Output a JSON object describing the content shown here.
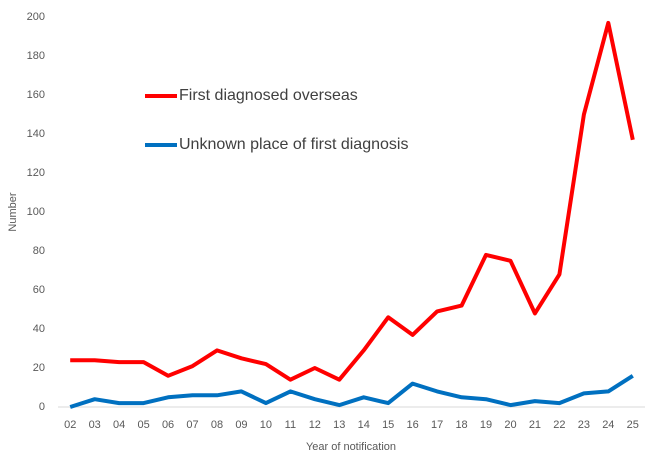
{
  "chart_data": {
    "type": "line",
    "x_label": "Year of notification",
    "y_label": "Number",
    "categories": [
      "02",
      "03",
      "04",
      "05",
      "06",
      "07",
      "08",
      "09",
      "10",
      "11",
      "12",
      "13",
      "14",
      "15",
      "16",
      "17",
      "18",
      "19",
      "20",
      "21",
      "22",
      "23",
      "24",
      "25"
    ],
    "series": [
      {
        "name": "First diagnosed overseas",
        "color": "#ff0000",
        "values": [
          24,
          24,
          23,
          23,
          16,
          21,
          29,
          25,
          22,
          14,
          20,
          14,
          29,
          46,
          37,
          49,
          52,
          78,
          75,
          48,
          68,
          150,
          197,
          137
        ]
      },
      {
        "name": "Unknown place of first diagnosis",
        "color": "#0070c0",
        "values": [
          0,
          4,
          2,
          2,
          5,
          6,
          6,
          8,
          2,
          8,
          4,
          1,
          5,
          2,
          12,
          8,
          5,
          4,
          1,
          3,
          2,
          7,
          8,
          16
        ]
      }
    ],
    "ylim": [
      0,
      200
    ],
    "yticks": [
      0,
      20,
      40,
      60,
      80,
      100,
      120,
      140,
      160,
      180,
      200
    ],
    "grid": false,
    "legend": "upper left"
  }
}
